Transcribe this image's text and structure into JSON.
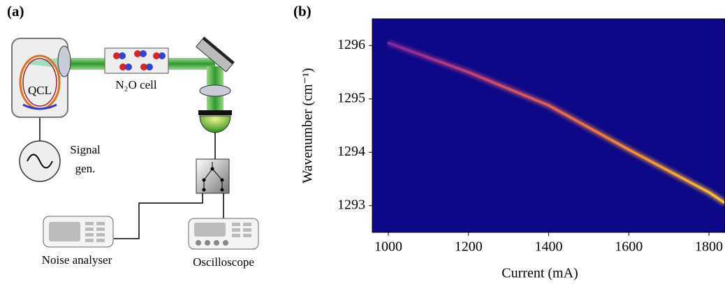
{
  "panel_labels": [
    "(a)",
    "(b)"
  ],
  "diagram": {
    "laser": "QCL",
    "cell": "N₂O cell",
    "generator": [
      "Signal",
      "gen."
    ],
    "analyser": "Noise analyser",
    "scope": "Oscilloscope"
  },
  "chart_data": {
    "type": "line",
    "xlabel": "Current (mA)",
    "ylabel": "Wavenumber (cm⁻¹)",
    "x": [
      1000,
      1200,
      1400,
      1600,
      1800,
      1840
    ],
    "series": [
      {
        "values": [
          1296.05,
          1295.5,
          1294.88,
          1294.05,
          1293.25,
          1293.05
        ],
        "colors": [
          "#7b1fa6",
          "#cf4a6e",
          "#f07f3c",
          "#fbc330"
        ]
      }
    ],
    "background": "#0d0887",
    "xlim": [
      960,
      1840
    ],
    "ylim": [
      1292.5,
      1296.5
    ],
    "xticks": [
      1000,
      1200,
      1400,
      1600,
      1800
    ],
    "yticks": [
      1293,
      1294,
      1295,
      1296
    ]
  }
}
